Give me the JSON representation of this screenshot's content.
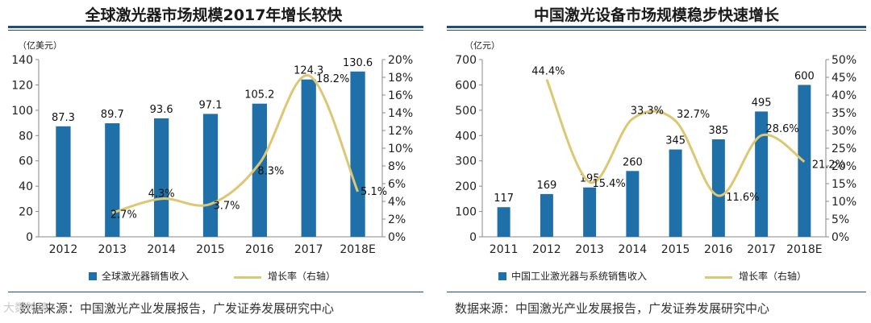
{
  "left": {
    "title": "全球激光器市场规模2017年增长较快",
    "source": "数据来源：中国激光产业发展报告，广发证券发展研究中心",
    "legend": {
      "bar": "全球激光器销售收入",
      "line": "增长率（右轴）"
    }
  },
  "right": {
    "title": "中国激光设备市场规模稳步快速增长",
    "source": "数据来源：中国激光产业发展报告，广发证券发展研究中心",
    "legend": {
      "bar": "中国工业激光器与系统销售收入",
      "line": "增长率（右轴）"
    }
  },
  "watermark": "大数跨境",
  "colors": {
    "bar": "#1f6fa8",
    "line": "#ddc773",
    "rule": "#1f4e79"
  },
  "chart_data": [
    {
      "type": "bar",
      "title": "全球激光器市场规模2017年增长较快",
      "unit_label": "（亿美元）",
      "categories": [
        "2012",
        "2013",
        "2014",
        "2015",
        "2016",
        "2017",
        "2018E"
      ],
      "series": [
        {
          "name": "全球激光器销售收入",
          "axis": "left",
          "values": [
            87.3,
            89.7,
            93.6,
            97.1,
            105.2,
            124.3,
            130.6
          ],
          "labels": [
            "87.3",
            "89.7",
            "93.6",
            "97.1",
            "105.2",
            "124.3",
            "130.6"
          ]
        },
        {
          "name": "增长率（右轴）",
          "axis": "right",
          "type": "line",
          "values": [
            null,
            2.7,
            4.3,
            3.7,
            8.3,
            18.2,
            5.1
          ],
          "labels": [
            null,
            "2.7%",
            "4.3%",
            "3.7%",
            "8.3%",
            "18.2%",
            "5.1%"
          ]
        }
      ],
      "ylim_left": [
        0,
        140
      ],
      "yticks_left": [
        "0",
        "20",
        "40",
        "60",
        "80",
        "100",
        "120",
        "140"
      ],
      "ylim_right": [
        0,
        20
      ],
      "yticks_right": [
        "0%",
        "2%",
        "4%",
        "6%",
        "8%",
        "10%",
        "12%",
        "14%",
        "16%",
        "18%",
        "20%"
      ]
    },
    {
      "type": "bar",
      "title": "中国激光设备市场规模稳步快速增长",
      "unit_label": "（亿元）",
      "categories": [
        "2011",
        "2012",
        "2013",
        "2014",
        "2015",
        "2016",
        "2017",
        "2018E"
      ],
      "series": [
        {
          "name": "中国工业激光器与系统销售收入",
          "axis": "left",
          "values": [
            117,
            169,
            195,
            260,
            345,
            385,
            495,
            600
          ],
          "labels": [
            "117",
            "169",
            "195",
            "260",
            "345",
            "385",
            "495",
            "600"
          ]
        },
        {
          "name": "增长率（右轴）",
          "axis": "right",
          "type": "line",
          "values": [
            null,
            44.4,
            15.4,
            33.3,
            32.7,
            11.6,
            28.6,
            21.2
          ],
          "labels": [
            null,
            "44.4%",
            "15.4%",
            "33.3%",
            "32.7%",
            "11.6%",
            "28.6%",
            "21.2%"
          ]
        }
      ],
      "ylim_left": [
        0,
        700
      ],
      "yticks_left": [
        "0",
        "100",
        "200",
        "300",
        "400",
        "500",
        "600",
        "700"
      ],
      "ylim_right": [
        0,
        50
      ],
      "yticks_right": [
        "0%",
        "5%",
        "10%",
        "15%",
        "20%",
        "25%",
        "30%",
        "35%",
        "40%",
        "45%",
        "50%"
      ]
    }
  ]
}
